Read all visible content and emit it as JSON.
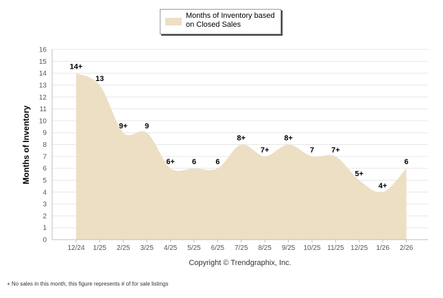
{
  "chart_data": {
    "type": "area",
    "legend": {
      "label": "Months of Inventory based on Closed Sales",
      "placement": "top-center"
    },
    "ylabel": "Months of Inventory",
    "xlabel": "",
    "ylim": [
      0,
      16
    ],
    "yticks": [
      "0",
      "1",
      "2",
      "3",
      "4",
      "5",
      "6",
      "7",
      "8",
      "9",
      "10",
      "11",
      "12",
      "13",
      "14",
      "15",
      "16"
    ],
    "categories": [
      "12/24",
      "1/25",
      "2/25",
      "3/25",
      "4/25",
      "5/25",
      "6/25",
      "7/25",
      "8/25",
      "9/25",
      "10/25",
      "11/25",
      "12/25",
      "1/26",
      "2/26"
    ],
    "values": [
      14,
      13,
      9,
      9,
      6,
      6,
      6,
      8,
      7,
      8,
      7,
      7,
      5,
      4,
      6
    ],
    "data_labels": [
      "14+",
      "13",
      "9+",
      "9",
      "6+",
      "6",
      "6",
      "8+",
      "7+",
      "8+",
      "7",
      "7+",
      "5+",
      "4+",
      "6"
    ],
    "grid": true,
    "colors": {
      "area": "#ecdfc4",
      "grid": "#e6e6e6",
      "axis": "#bcbcbc",
      "text": "#000000",
      "tick_text": "#555555"
    }
  },
  "copyright": "Copyright © Trendgraphix, Inc.",
  "footnote": "+  No sales in this month, this figure represents # of for sale listings"
}
